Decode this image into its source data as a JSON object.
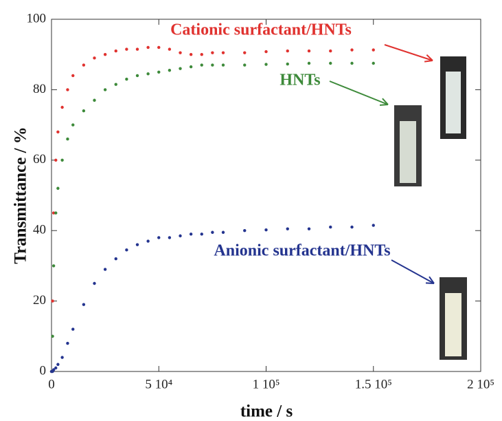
{
  "chart_data": {
    "type": "scatter",
    "x_label": "time / s",
    "y_label": "Transmittance  /  %",
    "xlim": [
      0,
      200000
    ],
    "xticks": [
      0,
      {
        "value": 50000,
        "label": "5 10⁴"
      },
      {
        "value": 100000,
        "label": "1 10⁵"
      },
      {
        "value": 150000,
        "label": "1.5 10⁵"
      },
      {
        "value": 200000,
        "label": "2 10⁵"
      }
    ],
    "ylim": [
      0,
      100
    ],
    "yticks": [
      0,
      20,
      40,
      60,
      80,
      100
    ],
    "x": [
      0,
      500,
      1000,
      2000,
      3000,
      5000,
      7500,
      10000,
      15000,
      20000,
      25000,
      30000,
      35000,
      40000,
      45000,
      50000,
      55000,
      60000,
      65000,
      70000,
      75000,
      80000,
      90000,
      100000,
      110000,
      120000,
      130000,
      140000,
      150000
    ],
    "series": [
      {
        "name": "Cationic surfactant/HNTs",
        "color": "#e0322f",
        "values": [
          0,
          20,
          45,
          60,
          68,
          75,
          80,
          84,
          87,
          89,
          90,
          91,
          91.5,
          91.5,
          92,
          92,
          91.5,
          90.5,
          90,
          90,
          90.5,
          90.5,
          90.5,
          90.8,
          91,
          91,
          91,
          91.3,
          91.3
        ]
      },
      {
        "name": "HNTs",
        "color": "#3d8a3a",
        "values": [
          0,
          10,
          30,
          45,
          52,
          60,
          66,
          70,
          74,
          77,
          80,
          81.5,
          83,
          84,
          84.5,
          85,
          85.5,
          86,
          86.5,
          87,
          87,
          87,
          87,
          87.2,
          87.3,
          87.5,
          87.5,
          87.5,
          87.5
        ]
      },
      {
        "name": "Anionic surfactant/HNTs",
        "color": "#24348f",
        "values": [
          0,
          0,
          0.5,
          1,
          2,
          4,
          8,
          12,
          19,
          25,
          29,
          32,
          34.5,
          36,
          37,
          38,
          38,
          38.5,
          39,
          39,
          39.5,
          39.5,
          40,
          40.2,
          40.5,
          40.5,
          41,
          41,
          41.5
        ]
      }
    ]
  }
}
